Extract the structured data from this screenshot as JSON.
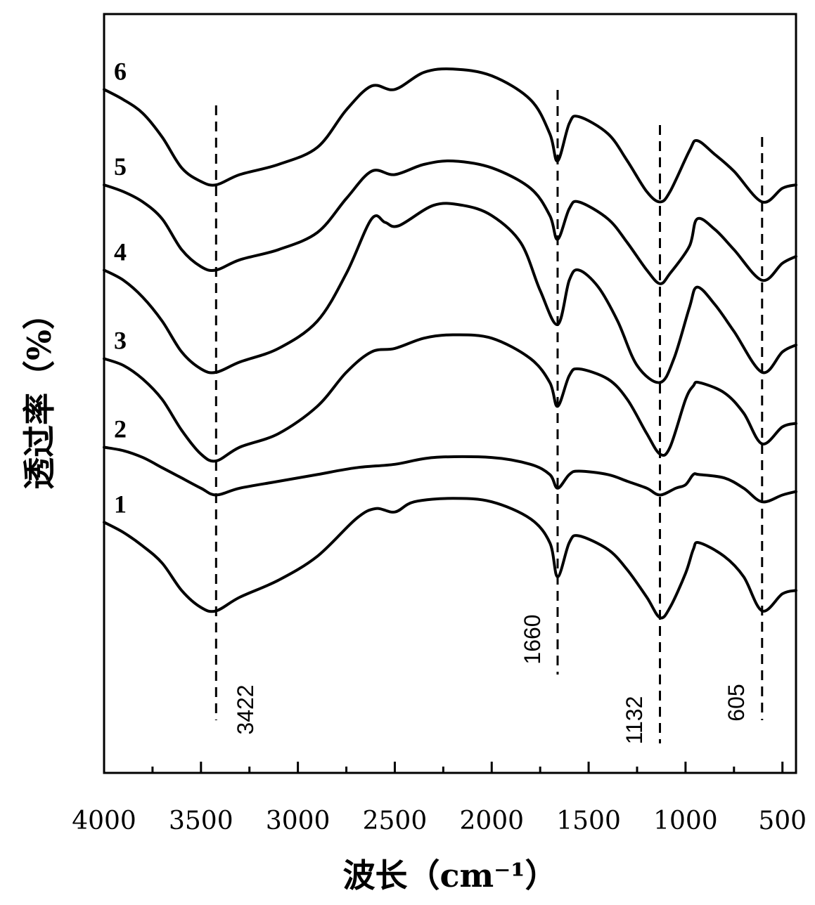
{
  "chart_data": {
    "type": "line",
    "xlabel": "波长（cm⁻¹）",
    "ylabel": "透过率（%）",
    "xlim": [
      4000,
      430
    ],
    "ylim": [
      0,
      100
    ],
    "x_reversed": true,
    "x_ticks": [
      4000,
      3500,
      3000,
      2500,
      2000,
      1500,
      1000,
      500
    ],
    "x_minor_step": 250,
    "y_ticks_shown": false,
    "grid": false,
    "legend": "none",
    "peaks": [
      {
        "x": 3422,
        "label": "3422"
      },
      {
        "x": 1660,
        "label": "1660"
      },
      {
        "x": 1132,
        "label": "1132"
      },
      {
        "x": 605,
        "label": "605"
      }
    ],
    "series": [
      {
        "name": "1",
        "points": [
          [
            4000,
            27.5
          ],
          [
            3900,
            26.0
          ],
          [
            3800,
            24.0
          ],
          [
            3700,
            21.5
          ],
          [
            3600,
            17.5
          ],
          [
            3500,
            15.0
          ],
          [
            3422,
            14.5
          ],
          [
            3300,
            16.5
          ],
          [
            3100,
            19.0
          ],
          [
            2900,
            22.5
          ],
          [
            2700,
            28.0
          ],
          [
            2600,
            29.5
          ],
          [
            2500,
            29.0
          ],
          [
            2400,
            30.5
          ],
          [
            2200,
            31.0
          ],
          [
            2000,
            30.5
          ],
          [
            1800,
            28.0
          ],
          [
            1700,
            24.5
          ],
          [
            1660,
            19.5
          ],
          [
            1600,
            24.5
          ],
          [
            1550,
            25.5
          ],
          [
            1400,
            23.5
          ],
          [
            1300,
            20.5
          ],
          [
            1200,
            16.5
          ],
          [
            1132,
            13.5
          ],
          [
            1080,
            15.0
          ],
          [
            1000,
            20.0
          ],
          [
            960,
            23.5
          ],
          [
            930,
            24.5
          ],
          [
            800,
            22.5
          ],
          [
            700,
            19.5
          ],
          [
            605,
            14.5
          ],
          [
            500,
            17.0
          ],
          [
            430,
            17.5
          ]
        ]
      },
      {
        "name": "2",
        "points": [
          [
            4000,
            38.5
          ],
          [
            3900,
            38.0
          ],
          [
            3800,
            37.0
          ],
          [
            3700,
            35.5
          ],
          [
            3600,
            34.0
          ],
          [
            3500,
            32.5
          ],
          [
            3422,
            31.5
          ],
          [
            3300,
            32.5
          ],
          [
            3100,
            33.5
          ],
          [
            2900,
            34.5
          ],
          [
            2700,
            35.5
          ],
          [
            2500,
            36.0
          ],
          [
            2300,
            37.0
          ],
          [
            2000,
            37.0
          ],
          [
            1800,
            36.0
          ],
          [
            1700,
            34.5
          ],
          [
            1660,
            32.5
          ],
          [
            1600,
            34.5
          ],
          [
            1550,
            35.0
          ],
          [
            1400,
            34.5
          ],
          [
            1300,
            33.5
          ],
          [
            1200,
            32.5
          ],
          [
            1132,
            31.5
          ],
          [
            1050,
            32.5
          ],
          [
            1000,
            33.0
          ],
          [
            960,
            34.5
          ],
          [
            930,
            34.5
          ],
          [
            800,
            34.0
          ],
          [
            700,
            32.5
          ],
          [
            605,
            30.5
          ],
          [
            500,
            31.5
          ],
          [
            430,
            32.0
          ]
        ]
      },
      {
        "name": "3",
        "points": [
          [
            4000,
            51.5
          ],
          [
            3900,
            50.5
          ],
          [
            3800,
            48.5
          ],
          [
            3700,
            45.5
          ],
          [
            3600,
            41.0
          ],
          [
            3500,
            37.5
          ],
          [
            3422,
            36.5
          ],
          [
            3300,
            38.5
          ],
          [
            3100,
            40.5
          ],
          [
            2900,
            44.5
          ],
          [
            2750,
            49.5
          ],
          [
            2620,
            52.5
          ],
          [
            2500,
            53.0
          ],
          [
            2350,
            54.5
          ],
          [
            2200,
            55.0
          ],
          [
            2000,
            54.5
          ],
          [
            1800,
            51.5
          ],
          [
            1700,
            48.0
          ],
          [
            1660,
            44.5
          ],
          [
            1600,
            49.0
          ],
          [
            1550,
            50.0
          ],
          [
            1400,
            48.5
          ],
          [
            1300,
            45.5
          ],
          [
            1200,
            40.5
          ],
          [
            1132,
            37.5
          ],
          [
            1080,
            38.5
          ],
          [
            1000,
            45.5
          ],
          [
            960,
            47.5
          ],
          [
            930,
            48.0
          ],
          [
            800,
            46.5
          ],
          [
            700,
            43.5
          ],
          [
            605,
            39.0
          ],
          [
            500,
            41.5
          ],
          [
            430,
            42.0
          ]
        ]
      },
      {
        "name": "4",
        "points": [
          [
            4000,
            64.5
          ],
          [
            3900,
            63.0
          ],
          [
            3800,
            60.5
          ],
          [
            3700,
            57.0
          ],
          [
            3600,
            52.5
          ],
          [
            3500,
            50.0
          ],
          [
            3422,
            49.5
          ],
          [
            3300,
            51.0
          ],
          [
            3100,
            53.0
          ],
          [
            2900,
            57.0
          ],
          [
            2750,
            64.0
          ],
          [
            2620,
            72.0
          ],
          [
            2550,
            71.5
          ],
          [
            2480,
            71.0
          ],
          [
            2300,
            74.0
          ],
          [
            2150,
            74.0
          ],
          [
            2000,
            72.5
          ],
          [
            1850,
            68.5
          ],
          [
            1750,
            61.5
          ],
          [
            1660,
            56.5
          ],
          [
            1600,
            63.0
          ],
          [
            1550,
            64.5
          ],
          [
            1450,
            62.0
          ],
          [
            1350,
            57.0
          ],
          [
            1250,
            50.5
          ],
          [
            1132,
            48.0
          ],
          [
            1060,
            51.5
          ],
          [
            980,
            59.0
          ],
          [
            940,
            62.0
          ],
          [
            850,
            59.5
          ],
          [
            750,
            55.5
          ],
          [
            605,
            49.5
          ],
          [
            500,
            52.5
          ],
          [
            430,
            53.5
          ]
        ]
      },
      {
        "name": "5",
        "points": [
          [
            4000,
            77.0
          ],
          [
            3900,
            76.0
          ],
          [
            3800,
            74.5
          ],
          [
            3700,
            72.0
          ],
          [
            3600,
            67.5
          ],
          [
            3500,
            65.0
          ],
          [
            3422,
            64.5
          ],
          [
            3300,
            66.0
          ],
          [
            3100,
            67.5
          ],
          [
            2900,
            70.0
          ],
          [
            2750,
            75.0
          ],
          [
            2620,
            79.0
          ],
          [
            2500,
            78.5
          ],
          [
            2350,
            80.0
          ],
          [
            2200,
            80.5
          ],
          [
            2000,
            79.5
          ],
          [
            1800,
            76.5
          ],
          [
            1700,
            72.5
          ],
          [
            1660,
            69.0
          ],
          [
            1600,
            73.5
          ],
          [
            1550,
            74.5
          ],
          [
            1400,
            72.0
          ],
          [
            1300,
            68.5
          ],
          [
            1200,
            64.5
          ],
          [
            1132,
            62.5
          ],
          [
            1080,
            64.0
          ],
          [
            980,
            68.0
          ],
          [
            940,
            72.0
          ],
          [
            850,
            70.5
          ],
          [
            750,
            67.5
          ],
          [
            605,
            63.0
          ],
          [
            500,
            65.5
          ],
          [
            430,
            66.5
          ]
        ]
      },
      {
        "name": "6",
        "points": [
          [
            4000,
            91.0
          ],
          [
            3900,
            89.5
          ],
          [
            3800,
            87.5
          ],
          [
            3700,
            84.0
          ],
          [
            3600,
            79.5
          ],
          [
            3500,
            77.5
          ],
          [
            3422,
            77.0
          ],
          [
            3300,
            78.5
          ],
          [
            3100,
            80.0
          ],
          [
            2900,
            82.5
          ],
          [
            2750,
            88.0
          ],
          [
            2620,
            91.5
          ],
          [
            2500,
            91.0
          ],
          [
            2350,
            93.5
          ],
          [
            2200,
            94.0
          ],
          [
            2000,
            93.0
          ],
          [
            1800,
            89.5
          ],
          [
            1700,
            84.5
          ],
          [
            1660,
            80.5
          ],
          [
            1600,
            86.0
          ],
          [
            1550,
            87.0
          ],
          [
            1400,
            84.5
          ],
          [
            1300,
            80.5
          ],
          [
            1200,
            76.0
          ],
          [
            1132,
            74.5
          ],
          [
            1080,
            76.0
          ],
          [
            980,
            82.0
          ],
          [
            940,
            83.5
          ],
          [
            850,
            81.5
          ],
          [
            750,
            79.0
          ],
          [
            605,
            74.5
          ],
          [
            500,
            76.5
          ],
          [
            430,
            77.0
          ]
        ]
      }
    ]
  }
}
